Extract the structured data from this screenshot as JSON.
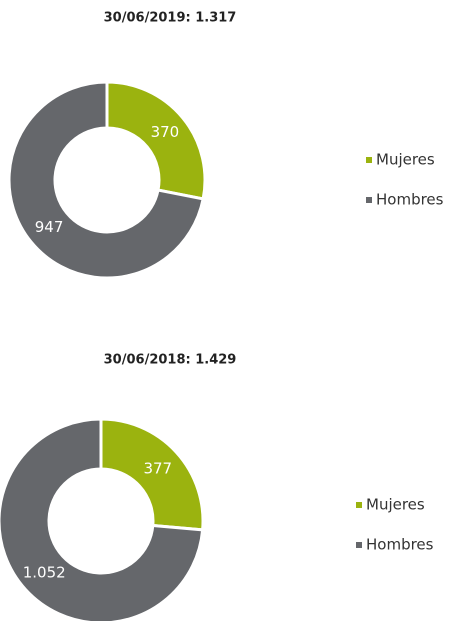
{
  "chart_data": [
    {
      "type": "donut",
      "title": "30/06/2019: 1.317",
      "categories": [
        "Mujeres",
        "Hombres"
      ],
      "values": [
        370,
        947
      ],
      "colors": [
        "#9bb30f",
        "#65676b"
      ]
    },
    {
      "type": "donut",
      "title": "30/06/2018: 1.429",
      "categories": [
        "Mujeres",
        "Hombres"
      ],
      "values": [
        377,
        1052
      ],
      "value_labels": [
        "377",
        "1.052"
      ],
      "colors": [
        "#9bb30f",
        "#65676b"
      ]
    }
  ]
}
